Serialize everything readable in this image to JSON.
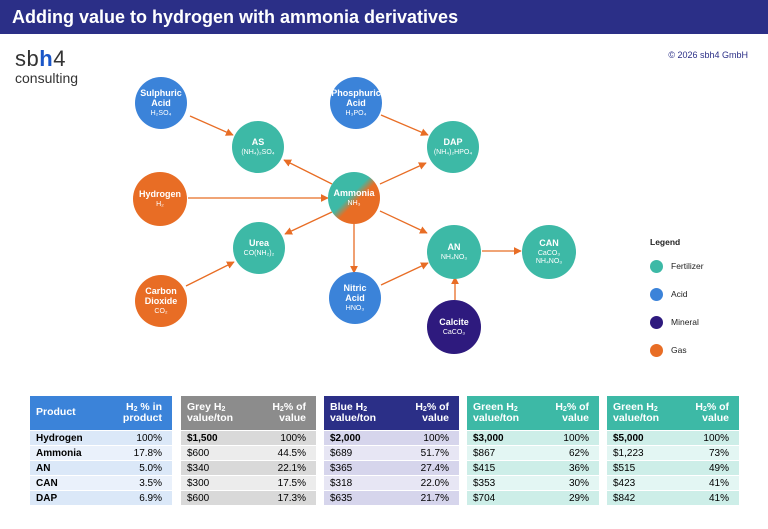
{
  "header": {
    "title": "Adding value to hydrogen with ammonia derivatives"
  },
  "logo": {
    "main_a": "sb",
    "main_h": "h",
    "main_b": "4",
    "sub": "consulting"
  },
  "copyright": "© 2026 sbh4 GmbH",
  "colors": {
    "fertilizer": "#3db9a6",
    "acid": "#3b83d9",
    "mineral": "#2e1a7e",
    "gas": "#e86d25",
    "header": "#2b2f87"
  },
  "nodes": {
    "sulphuric_acid": {
      "name": "Sulphuric\nAcid",
      "formula": "H₂SO₄"
    },
    "phosphoric_acid": {
      "name": "Phosphuric\nAcid",
      "formula": "H₃PO₄"
    },
    "as": {
      "name": "AS",
      "formula": "(NH₄)₂SO₄"
    },
    "dap": {
      "name": "DAP",
      "formula": "(NH₄)₂HPO₄"
    },
    "hydrogen": {
      "name": "Hydrogen",
      "formula": "H₂"
    },
    "ammonia": {
      "name": "Ammonia",
      "formula": "NH₃"
    },
    "urea": {
      "name": "Urea",
      "formula": "CO(NH₂)₂"
    },
    "an": {
      "name": "AN",
      "formula": "NH₄NO₃"
    },
    "can": {
      "name": "CAN",
      "formula": "CaCO₃\nNH₄NO₃"
    },
    "carbon_dioxide": {
      "name": "Carbon\nDioxide",
      "formula": "CO₂"
    },
    "nitric_acid": {
      "name": "Nitric\nAcid",
      "formula": "HNO₃"
    },
    "calcite": {
      "name": "Calcite",
      "formula": "CaCO₃"
    }
  },
  "legend": {
    "title": "Legend",
    "items": [
      {
        "label": "Fertilizer",
        "color": "#3db9a6"
      },
      {
        "label": "Acid",
        "color": "#3b83d9"
      },
      {
        "label": "Mineral",
        "color": "#2e1a7e"
      },
      {
        "label": "Gas",
        "color": "#e86d25"
      }
    ]
  },
  "table": {
    "product": {
      "h1": "Product",
      "h2a": "H",
      "h2b": "2",
      "h2c": " % in product"
    },
    "grey": {
      "h1a": "Grey H",
      "h1b": "2",
      "h1c": " value/ton",
      "h2a": "H",
      "h2b": "2",
      "h2c": "% of value"
    },
    "blue": {
      "h1a": "Blue H",
      "h1b": "2",
      "h1c": " value/ton",
      "h2a": "H",
      "h2b": "2",
      "h2c": "% of value"
    },
    "green1": {
      "h1a": "Green H",
      "h1b": "2",
      "h1c": " value/ton",
      "h2a": "H",
      "h2b": "2",
      "h2c": "% of value"
    },
    "green2": {
      "h1a": "Green H",
      "h1b": "2",
      "h1c": " value/ton",
      "h2a": "H",
      "h2b": "2",
      "h2c": "% of value"
    },
    "rows": [
      {
        "product": "Hydrogen",
        "pct": "100%",
        "grey_v": "$1,500",
        "grey_p": "100%",
        "blue_v": "$2,000",
        "blue_p": "100%",
        "g1_v": "$3,000",
        "g1_p": "100%",
        "g2_v": "$5,000",
        "g2_p": "100%"
      },
      {
        "product": "Ammonia",
        "pct": "17.8%",
        "grey_v": "$600",
        "grey_p": "44.5%",
        "blue_v": "$689",
        "blue_p": "51.7%",
        "g1_v": "$867",
        "g1_p": "62%",
        "g2_v": "$1,223",
        "g2_p": "73%"
      },
      {
        "product": "AN",
        "pct": "5.0%",
        "grey_v": "$340",
        "grey_p": "22.1%",
        "blue_v": "$365",
        "blue_p": "27.4%",
        "g1_v": "$415",
        "g1_p": "36%",
        "g2_v": "$515",
        "g2_p": "49%"
      },
      {
        "product": "CAN",
        "pct": "3.5%",
        "grey_v": "$300",
        "grey_p": "17.5%",
        "blue_v": "$318",
        "blue_p": "22.0%",
        "g1_v": "$353",
        "g1_p": "30%",
        "g2_v": "$423",
        "g2_p": "41%"
      },
      {
        "product": "DAP",
        "pct": "6.9%",
        "grey_v": "$600",
        "grey_p": "17.3%",
        "blue_v": "$635",
        "blue_p": "21.7%",
        "g1_v": "$704",
        "g1_p": "29%",
        "g2_v": "$842",
        "g2_p": "41%"
      }
    ]
  }
}
